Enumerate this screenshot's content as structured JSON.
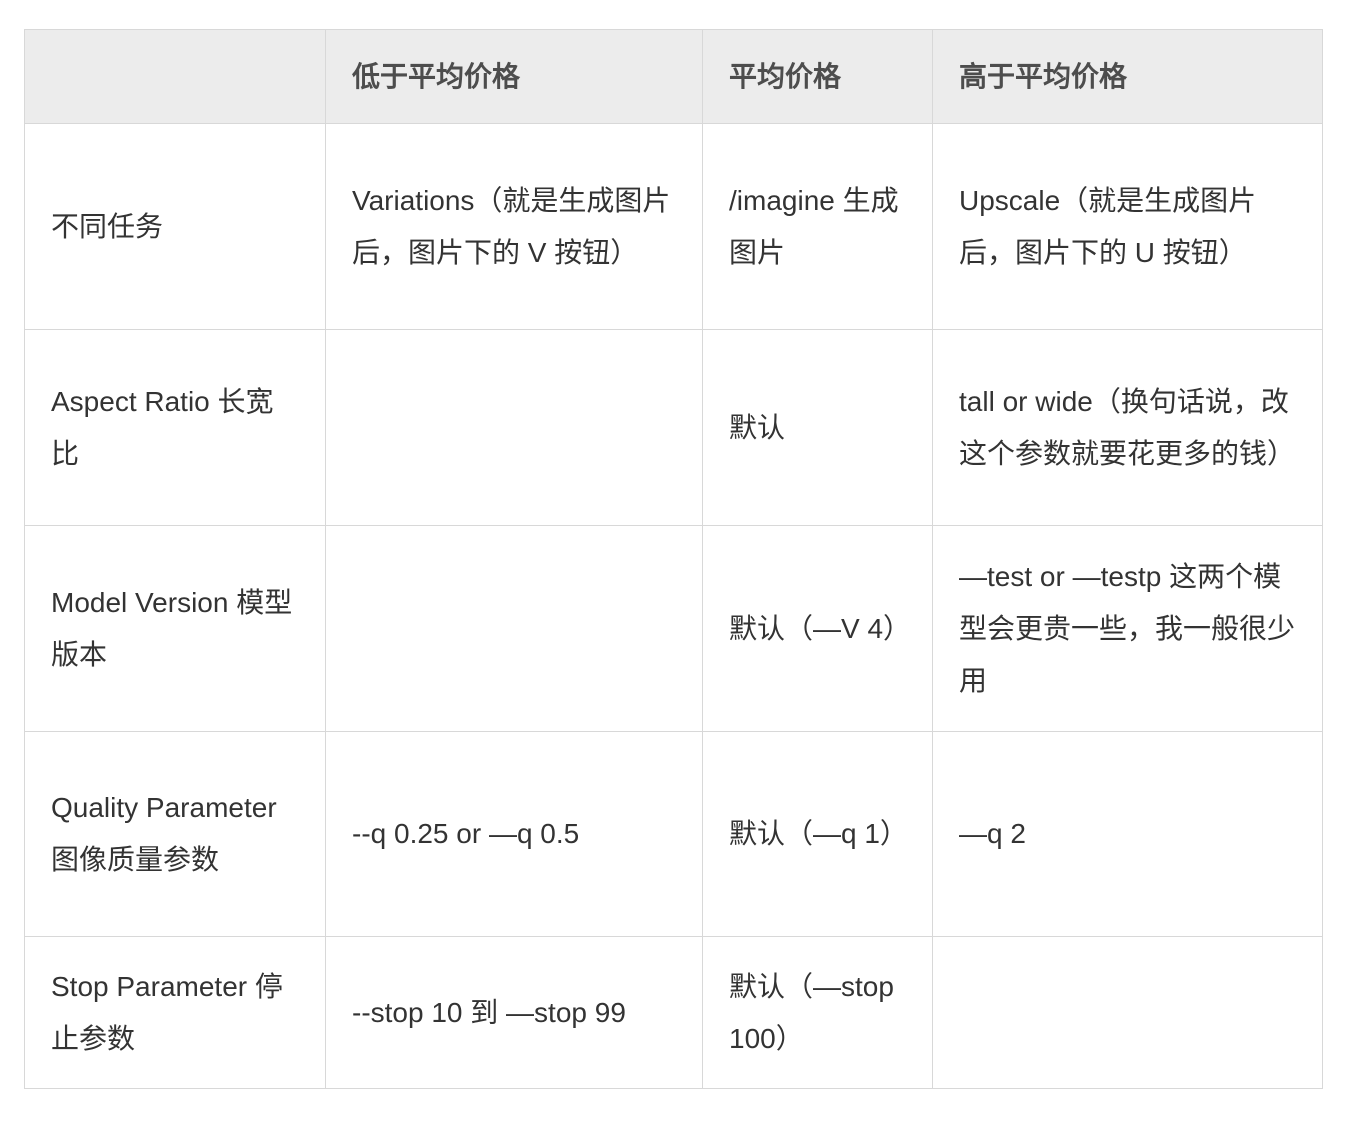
{
  "table": {
    "headers": [
      "",
      "低于平均价格",
      "平均价格",
      "高于平均价格"
    ],
    "rows": [
      {
        "cells": [
          "不同任务",
          "Variations（就是生成图片后，图片下的 V 按钮）",
          "/imagine 生成图片",
          "Upscale（就是生成图片后，图片下的 U 按钮）"
        ]
      },
      {
        "cells": [
          "Aspect Ratio 长宽比",
          "",
          "默认",
          "tall or wide（换句话说，改这个参数就要花更多的钱）"
        ]
      },
      {
        "cells": [
          "Model Version 模型版本",
          "",
          "默认（—V 4）",
          "—test or —testp 这两个模型会更贵一些，我一般很少用"
        ]
      },
      {
        "cells": [
          "Quality Parameter图像质量参数",
          "--q 0.25 or —q 0.5",
          "默认（—q 1）",
          "—q 2"
        ]
      },
      {
        "cells": [
          "Stop Parameter 停止参数",
          "--stop 10 到 —stop 99",
          "默认（—stop 100）",
          ""
        ]
      }
    ],
    "colors": {
      "page_bg": "#ffffff",
      "header_bg": "#ececec",
      "border": "#d8d8d8",
      "header_text": "#4d4d4d",
      "body_text": "#333333"
    }
  }
}
